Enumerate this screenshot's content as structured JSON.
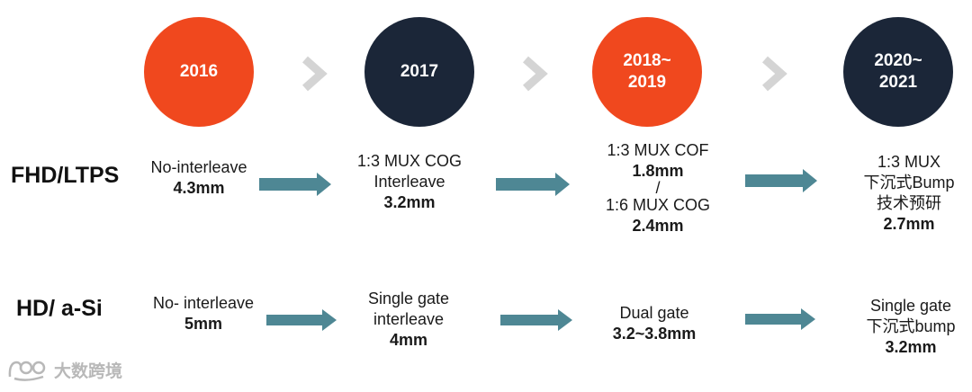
{
  "colors": {
    "orange": "#F0481E",
    "navy": "#1B2638",
    "arrow": "#4E8794",
    "chevron": "#D4D4D4"
  },
  "years": [
    {
      "lines": [
        "2016"
      ],
      "color": "orange"
    },
    {
      "lines": [
        "2017"
      ],
      "color": "navy"
    },
    {
      "lines": [
        "2018~",
        "2019"
      ],
      "color": "orange"
    },
    {
      "lines": [
        "2020~",
        "2021"
      ],
      "color": "navy"
    }
  ],
  "rows": [
    {
      "label": "FHD/LTPS",
      "cells": [
        {
          "lines": [
            {
              "t": "No-interleave",
              "b": false
            },
            {
              "t": "4.3mm",
              "b": true
            }
          ]
        },
        {
          "lines": [
            {
              "t": "1:3 MUX COG",
              "b": false
            },
            {
              "t": "Interleave",
              "b": false
            },
            {
              "t": "3.2mm",
              "b": true
            }
          ]
        },
        {
          "lines": [
            {
              "t": "1:3 MUX COF",
              "b": false
            },
            {
              "t": "1.8mm",
              "b": true
            },
            {
              "t": "/",
              "b": false
            },
            {
              "t": "1:6 MUX COG",
              "b": false
            },
            {
              "t": "2.4mm",
              "b": true
            }
          ]
        },
        {
          "lines": [
            {
              "t": "1:3 MUX",
              "b": false
            },
            {
              "t": "下沉式Bump",
              "b": false
            },
            {
              "t": "技术预研",
              "b": false
            },
            {
              "t": "2.7mm",
              "b": true
            }
          ]
        }
      ]
    },
    {
      "label": "HD/ a-Si",
      "cells": [
        {
          "lines": [
            {
              "t": "No- interleave",
              "b": false
            },
            {
              "t": "5mm",
              "b": true
            }
          ]
        },
        {
          "lines": [
            {
              "t": "Single gate",
              "b": false
            },
            {
              "t": "interleave",
              "b": false
            },
            {
              "t": "4mm",
              "b": true
            }
          ]
        },
        {
          "lines": [
            {
              "t": "Dual gate",
              "b": false
            },
            {
              "t": "3.2~3.8mm",
              "b": true
            }
          ]
        },
        {
          "lines": [
            {
              "t": "Single gate",
              "b": false
            },
            {
              "t": "下沉式bump",
              "b": false
            },
            {
              "t": "3.2mm",
              "b": true
            }
          ]
        }
      ]
    }
  ],
  "watermark": {
    "text": "大数跨境",
    "icon": "brand-logo-icon"
  }
}
